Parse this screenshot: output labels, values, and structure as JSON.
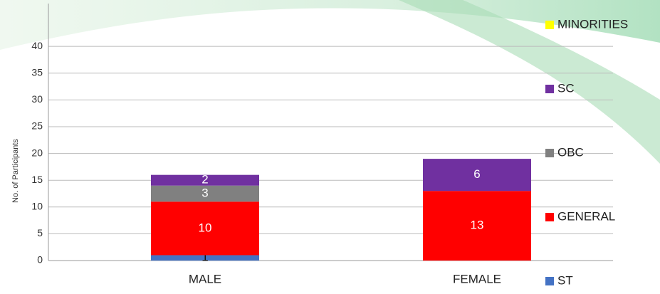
{
  "chart_data": {
    "type": "stacked-bar",
    "y_label": "No. of Participants",
    "categories": [
      "MALE",
      "FEMALE"
    ],
    "series": [
      {
        "name": "ST",
        "color": "#4472c4",
        "values": [
          1,
          null
        ]
      },
      {
        "name": "GENERAL",
        "color": "#ff0000",
        "values": [
          10,
          13
        ]
      },
      {
        "name": "OBC",
        "color": "#808080",
        "values": [
          3,
          null
        ]
      },
      {
        "name": "SC",
        "color": "#7030a0",
        "values": [
          2,
          6
        ]
      },
      {
        "name": "MINORITIES",
        "color": "#ffff00",
        "values": [
          null,
          null
        ]
      }
    ],
    "ylim": [
      0,
      48
    ],
    "yticks": [
      0,
      5,
      10,
      15,
      20,
      25,
      30,
      35,
      40
    ],
    "grid": true
  }
}
